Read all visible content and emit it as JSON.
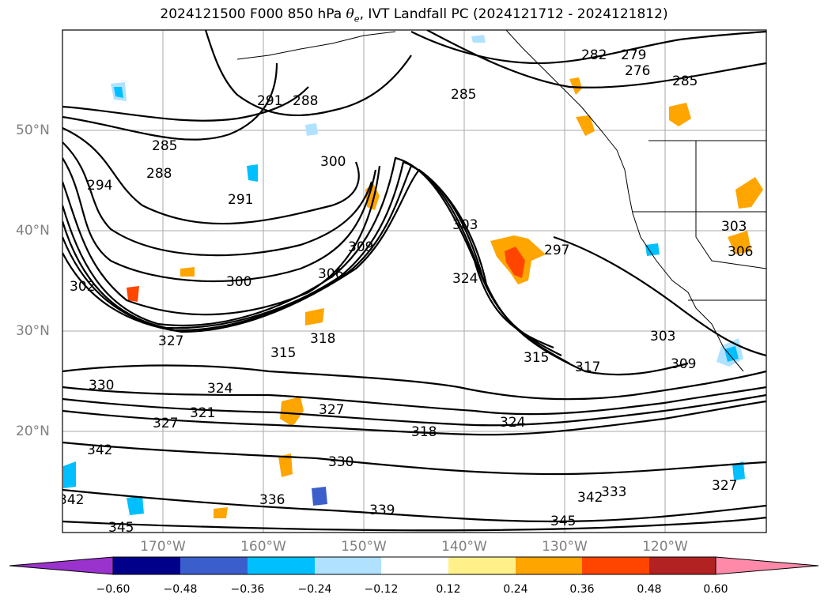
{
  "title": {
    "prefix": "2024121500 F000 850 hPa ",
    "theta": "θ",
    "theta_sub": "e",
    "suffix": ", IVT Landfall PC (2024121712 - 2024121812)"
  },
  "lat_labels": [
    "50°N",
    "40°N",
    "30°N",
    "20°N"
  ],
  "lon_labels": [
    "170°W",
    "160°W",
    "150°W",
    "140°W",
    "130°W",
    "120°W"
  ],
  "contour_labels": [
    "282",
    "279",
    "276",
    "285",
    "291",
    "288",
    "285",
    "288",
    "294",
    "300",
    "291",
    "285",
    "303",
    "297",
    "309",
    "306",
    "300",
    "324",
    "315",
    "318",
    "327",
    "324",
    "327",
    "330",
    "321",
    "327",
    "318",
    "324",
    "330",
    "342",
    "342",
    "336",
    "339",
    "345",
    "345",
    "342",
    "333",
    "327",
    "303",
    "309",
    "317",
    "303",
    "306",
    "315",
    "302"
  ],
  "colorbar": {
    "ticks": [
      "−0.60",
      "−0.48",
      "−0.36",
      "−0.24",
      "−0.12",
      "0.12",
      "0.24",
      "0.36",
      "0.48",
      "0.60"
    ],
    "colors": [
      "#9a32cd",
      "#00008b",
      "#3a5fcd",
      "#00bfff",
      "#b0e2ff",
      "#ffffff",
      "#fff08a",
      "#ffa500",
      "#ff4500",
      "#b22222",
      "#ff89a8"
    ]
  }
}
